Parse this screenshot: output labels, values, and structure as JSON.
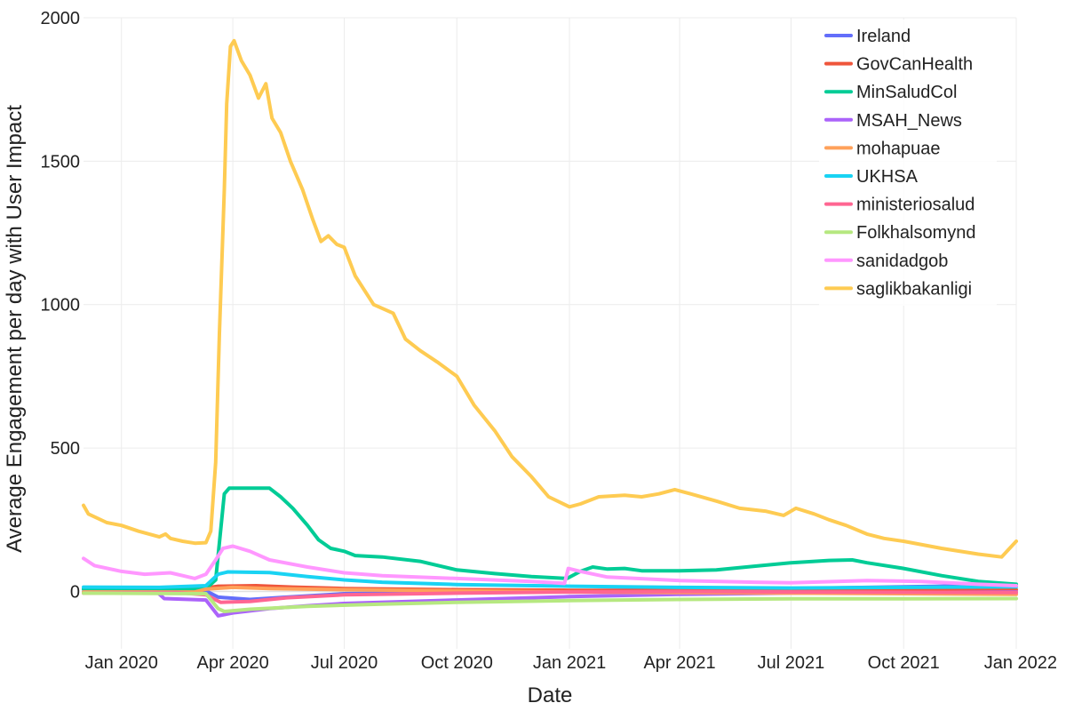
{
  "chart_data": {
    "type": "line",
    "xlabel": "Date",
    "ylabel": "Average Engagement per day with User Impact",
    "xlim": [
      "2019-12-01",
      "2022-01-01"
    ],
    "ylim": [
      -200,
      2000
    ],
    "xticks": [
      {
        "date": "2020-01-01",
        "label": "Jan 2020"
      },
      {
        "date": "2020-04-01",
        "label": "Apr 2020"
      },
      {
        "date": "2020-07-01",
        "label": "Jul 2020"
      },
      {
        "date": "2020-10-01",
        "label": "Oct 2020"
      },
      {
        "date": "2021-01-01",
        "label": "Jan 2021"
      },
      {
        "date": "2021-04-01",
        "label": "Apr 2021"
      },
      {
        "date": "2021-07-01",
        "label": "Jul 2021"
      },
      {
        "date": "2021-10-01",
        "label": "Oct 2021"
      },
      {
        "date": "2022-01-01",
        "label": "Jan 2022"
      }
    ],
    "yticks": [
      0,
      500,
      1000,
      1500,
      2000
    ],
    "grid": true,
    "legend": "top-right",
    "series": [
      {
        "name": "Ireland",
        "color": "#636efa",
        "points": [
          [
            "2019-12-01",
            8
          ],
          [
            "2020-02-01",
            6
          ],
          [
            "2020-03-10",
            2
          ],
          [
            "2020-03-20",
            -20
          ],
          [
            "2020-04-15",
            -28
          ],
          [
            "2020-05-15",
            -20
          ],
          [
            "2020-07-01",
            -8
          ],
          [
            "2020-10-01",
            -4
          ],
          [
            "2021-01-01",
            2
          ],
          [
            "2021-04-01",
            6
          ],
          [
            "2021-07-01",
            10
          ],
          [
            "2021-10-01",
            16
          ],
          [
            "2022-01-01",
            22
          ]
        ]
      },
      {
        "name": "GovCanHealth",
        "color": "#ef553b",
        "points": [
          [
            "2019-12-01",
            -4
          ],
          [
            "2020-02-15",
            -2
          ],
          [
            "2020-03-10",
            12
          ],
          [
            "2020-03-20",
            18
          ],
          [
            "2020-04-20",
            20
          ],
          [
            "2020-05-20",
            15
          ],
          [
            "2020-07-01",
            10
          ],
          [
            "2020-10-01",
            6
          ],
          [
            "2021-01-01",
            4
          ],
          [
            "2021-04-01",
            3
          ],
          [
            "2021-07-01",
            4
          ],
          [
            "2021-10-01",
            4
          ],
          [
            "2022-01-01",
            6
          ]
        ]
      },
      {
        "name": "MinSaludCol",
        "color": "#00cc96",
        "points": [
          [
            "2019-12-01",
            8
          ],
          [
            "2020-02-01",
            8
          ],
          [
            "2020-03-10",
            10
          ],
          [
            "2020-03-18",
            40
          ],
          [
            "2020-03-25",
            340
          ],
          [
            "2020-03-29",
            360
          ],
          [
            "2020-05-01",
            360
          ],
          [
            "2020-05-10",
            330
          ],
          [
            "2020-05-20",
            290
          ],
          [
            "2020-06-01",
            230
          ],
          [
            "2020-06-10",
            180
          ],
          [
            "2020-06-20",
            150
          ],
          [
            "2020-07-01",
            140
          ],
          [
            "2020-07-10",
            125
          ],
          [
            "2020-08-01",
            120
          ],
          [
            "2020-09-01",
            105
          ],
          [
            "2020-10-01",
            75
          ],
          [
            "2020-11-01",
            62
          ],
          [
            "2020-12-01",
            52
          ],
          [
            "2020-12-30",
            45
          ],
          [
            "2021-01-10",
            70
          ],
          [
            "2021-01-20",
            85
          ],
          [
            "2021-02-01",
            78
          ],
          [
            "2021-02-15",
            80
          ],
          [
            "2021-03-01",
            72
          ],
          [
            "2021-04-01",
            72
          ],
          [
            "2021-05-01",
            75
          ],
          [
            "2021-06-01",
            88
          ],
          [
            "2021-07-01",
            100
          ],
          [
            "2021-08-01",
            108
          ],
          [
            "2021-08-20",
            110
          ],
          [
            "2021-09-01",
            100
          ],
          [
            "2021-10-01",
            80
          ],
          [
            "2021-11-01",
            55
          ],
          [
            "2021-12-01",
            35
          ],
          [
            "2022-01-01",
            25
          ]
        ]
      },
      {
        "name": "MSAH_News",
        "color": "#ab63fa",
        "points": [
          [
            "2019-12-01",
            -2
          ],
          [
            "2020-01-30",
            -2
          ],
          [
            "2020-02-05",
            -25
          ],
          [
            "2020-03-10",
            -30
          ],
          [
            "2020-03-20",
            -85
          ],
          [
            "2020-04-01",
            -75
          ],
          [
            "2020-05-01",
            -60
          ],
          [
            "2020-06-01",
            -50
          ],
          [
            "2020-07-01",
            -42
          ],
          [
            "2020-10-01",
            -30
          ],
          [
            "2021-01-01",
            -18
          ],
          [
            "2021-04-01",
            -10
          ],
          [
            "2021-07-01",
            -6
          ],
          [
            "2021-10-01",
            -4
          ],
          [
            "2022-01-01",
            -2
          ]
        ]
      },
      {
        "name": "mohapuae",
        "color": "#ffa15a",
        "points": [
          [
            "2019-12-01",
            -2
          ],
          [
            "2020-03-01",
            -2
          ],
          [
            "2020-03-10",
            8
          ],
          [
            "2020-04-01",
            14
          ],
          [
            "2020-05-01",
            10
          ],
          [
            "2020-07-01",
            6
          ],
          [
            "2020-10-01",
            2
          ],
          [
            "2021-01-01",
            -2
          ],
          [
            "2021-04-01",
            -4
          ],
          [
            "2021-07-01",
            -6
          ],
          [
            "2021-10-01",
            -8
          ],
          [
            "2022-01-01",
            -10
          ]
        ]
      },
      {
        "name": "UKHSA",
        "color": "#19d3f3",
        "points": [
          [
            "2019-12-01",
            15
          ],
          [
            "2020-02-01",
            14
          ],
          [
            "2020-03-10",
            20
          ],
          [
            "2020-03-20",
            60
          ],
          [
            "2020-03-28",
            68
          ],
          [
            "2020-05-01",
            66
          ],
          [
            "2020-06-01",
            52
          ],
          [
            "2020-07-01",
            40
          ],
          [
            "2020-08-01",
            32
          ],
          [
            "2020-10-01",
            24
          ],
          [
            "2021-01-01",
            18
          ],
          [
            "2021-04-01",
            14
          ],
          [
            "2021-07-01",
            12
          ],
          [
            "2021-10-01",
            14
          ],
          [
            "2022-01-01",
            16
          ]
        ]
      },
      {
        "name": "ministeriosalud",
        "color": "#ff6692",
        "points": [
          [
            "2019-12-01",
            -6
          ],
          [
            "2020-02-15",
            -4
          ],
          [
            "2020-03-10",
            -12
          ],
          [
            "2020-03-22",
            -38
          ],
          [
            "2020-04-15",
            -35
          ],
          [
            "2020-05-15",
            -22
          ],
          [
            "2020-07-01",
            -12
          ],
          [
            "2020-10-01",
            -6
          ],
          [
            "2021-01-01",
            -2
          ],
          [
            "2021-04-01",
            0
          ],
          [
            "2021-07-01",
            -2
          ],
          [
            "2021-10-01",
            -3
          ],
          [
            "2022-01-01",
            -4
          ]
        ]
      },
      {
        "name": "Folkhalsomynd",
        "color": "#b6e880",
        "points": [
          [
            "2019-12-01",
            -6
          ],
          [
            "2020-03-10",
            -8
          ],
          [
            "2020-03-20",
            -60
          ],
          [
            "2020-03-25",
            -70
          ],
          [
            "2020-04-15",
            -62
          ],
          [
            "2020-06-01",
            -52
          ],
          [
            "2020-08-01",
            -44
          ],
          [
            "2020-10-01",
            -38
          ],
          [
            "2021-01-01",
            -32
          ],
          [
            "2021-04-01",
            -28
          ],
          [
            "2021-07-01",
            -26
          ],
          [
            "2021-10-01",
            -26
          ],
          [
            "2022-01-01",
            -25
          ]
        ]
      },
      {
        "name": "sanidadgob",
        "color": "#ff97ff",
        "points": [
          [
            "2019-12-01",
            115
          ],
          [
            "2019-12-10",
            90
          ],
          [
            "2020-01-01",
            70
          ],
          [
            "2020-01-20",
            60
          ],
          [
            "2020-02-10",
            65
          ],
          [
            "2020-02-20",
            55
          ],
          [
            "2020-03-01",
            45
          ],
          [
            "2020-03-10",
            60
          ],
          [
            "2020-03-18",
            110
          ],
          [
            "2020-03-24",
            150
          ],
          [
            "2020-04-01",
            158
          ],
          [
            "2020-04-15",
            140
          ],
          [
            "2020-05-01",
            110
          ],
          [
            "2020-06-01",
            85
          ],
          [
            "2020-07-01",
            65
          ],
          [
            "2020-08-01",
            55
          ],
          [
            "2020-10-01",
            45
          ],
          [
            "2020-12-01",
            35
          ],
          [
            "2020-12-28",
            28
          ],
          [
            "2020-12-31",
            80
          ],
          [
            "2021-01-10",
            70
          ],
          [
            "2021-02-01",
            50
          ],
          [
            "2021-04-01",
            38
          ],
          [
            "2021-06-01",
            32
          ],
          [
            "2021-07-01",
            30
          ],
          [
            "2021-09-01",
            38
          ],
          [
            "2021-10-15",
            35
          ],
          [
            "2021-12-01",
            25
          ],
          [
            "2022-01-01",
            20
          ]
        ]
      },
      {
        "name": "saglikbakanligi",
        "color": "#fecb52",
        "points": [
          [
            "2019-12-01",
            300
          ],
          [
            "2019-12-05",
            270
          ],
          [
            "2019-12-20",
            240
          ],
          [
            "2020-01-01",
            230
          ],
          [
            "2020-01-15",
            210
          ],
          [
            "2020-02-01",
            190
          ],
          [
            "2020-02-06",
            200
          ],
          [
            "2020-02-10",
            185
          ],
          [
            "2020-02-20",
            175
          ],
          [
            "2020-03-01",
            168
          ],
          [
            "2020-03-10",
            170
          ],
          [
            "2020-03-14",
            210
          ],
          [
            "2020-03-18",
            450
          ],
          [
            "2020-03-21",
            900
          ],
          [
            "2020-03-25",
            1400
          ],
          [
            "2020-03-27",
            1700
          ],
          [
            "2020-03-30",
            1900
          ],
          [
            "2020-04-02",
            1920
          ],
          [
            "2020-04-08",
            1850
          ],
          [
            "2020-04-15",
            1800
          ],
          [
            "2020-04-22",
            1720
          ],
          [
            "2020-04-28",
            1770
          ],
          [
            "2020-05-03",
            1650
          ],
          [
            "2020-05-10",
            1600
          ],
          [
            "2020-05-18",
            1500
          ],
          [
            "2020-05-28",
            1400
          ],
          [
            "2020-06-05",
            1300
          ],
          [
            "2020-06-12",
            1220
          ],
          [
            "2020-06-18",
            1240
          ],
          [
            "2020-06-25",
            1210
          ],
          [
            "2020-07-01",
            1200
          ],
          [
            "2020-07-10",
            1100
          ],
          [
            "2020-07-25",
            1000
          ],
          [
            "2020-08-10",
            970
          ],
          [
            "2020-08-20",
            880
          ],
          [
            "2020-09-01",
            840
          ],
          [
            "2020-09-15",
            800
          ],
          [
            "2020-10-01",
            750
          ],
          [
            "2020-10-15",
            650
          ],
          [
            "2020-11-01",
            560
          ],
          [
            "2020-11-15",
            470
          ],
          [
            "2020-12-01",
            400
          ],
          [
            "2020-12-15",
            330
          ],
          [
            "2021-01-01",
            295
          ],
          [
            "2021-01-10",
            305
          ],
          [
            "2021-01-25",
            330
          ],
          [
            "2021-02-15",
            335
          ],
          [
            "2021-03-01",
            330
          ],
          [
            "2021-03-15",
            340
          ],
          [
            "2021-03-28",
            355
          ],
          [
            "2021-04-10",
            340
          ],
          [
            "2021-05-01",
            315
          ],
          [
            "2021-05-20",
            290
          ],
          [
            "2021-06-10",
            280
          ],
          [
            "2021-06-25",
            265
          ],
          [
            "2021-07-05",
            290
          ],
          [
            "2021-07-20",
            270
          ],
          [
            "2021-08-01",
            250
          ],
          [
            "2021-08-15",
            230
          ],
          [
            "2021-09-01",
            200
          ],
          [
            "2021-09-15",
            185
          ],
          [
            "2021-10-01",
            175
          ],
          [
            "2021-11-01",
            150
          ],
          [
            "2021-12-01",
            130
          ],
          [
            "2021-12-20",
            120
          ],
          [
            "2022-01-01",
            175
          ]
        ]
      }
    ]
  }
}
